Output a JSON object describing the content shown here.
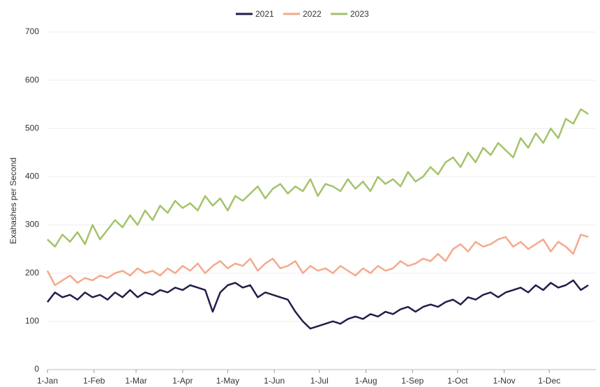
{
  "chart_data": {
    "type": "line",
    "y_label": "Exahashes per Second",
    "x": [
      0,
      5,
      10,
      15,
      20,
      25,
      30,
      35,
      40,
      45,
      50,
      55,
      60,
      65,
      70,
      75,
      80,
      85,
      90,
      95,
      100,
      105,
      110,
      115,
      120,
      125,
      130,
      135,
      140,
      145,
      150,
      155,
      160,
      165,
      170,
      175,
      180,
      185,
      190,
      195,
      200,
      205,
      210,
      215,
      220,
      225,
      230,
      235,
      240,
      245,
      250,
      255,
      260,
      265,
      270,
      275,
      280,
      285,
      290,
      295,
      300,
      305,
      310,
      315,
      320,
      325,
      330,
      335,
      340,
      345,
      350,
      355,
      360
    ],
    "series": [
      {
        "name": "2021",
        "color": "#231d4a",
        "values": [
          140,
          160,
          150,
          155,
          145,
          160,
          150,
          155,
          145,
          160,
          150,
          165,
          150,
          160,
          155,
          165,
          160,
          170,
          165,
          175,
          170,
          165,
          120,
          160,
          175,
          180,
          170,
          175,
          150,
          160,
          155,
          150,
          145,
          120,
          100,
          85,
          90,
          95,
          100,
          95,
          105,
          110,
          105,
          115,
          110,
          120,
          115,
          125,
          130,
          120,
          130,
          135,
          130,
          140,
          145,
          135,
          150,
          145,
          155,
          160,
          150,
          160,
          165,
          170,
          160,
          175,
          165,
          180,
          170,
          175,
          185,
          165,
          175
        ]
      },
      {
        "name": "2022",
        "color": "#f5a98c",
        "values": [
          205,
          175,
          185,
          195,
          180,
          190,
          185,
          195,
          190,
          200,
          205,
          195,
          210,
          200,
          205,
          195,
          210,
          200,
          215,
          205,
          220,
          200,
          215,
          225,
          210,
          220,
          215,
          230,
          205,
          220,
          230,
          210,
          215,
          225,
          200,
          215,
          205,
          210,
          200,
          215,
          205,
          195,
          210,
          200,
          215,
          205,
          210,
          225,
          215,
          220,
          230,
          225,
          240,
          225,
          250,
          260,
          245,
          265,
          255,
          260,
          270,
          275,
          255,
          265,
          250,
          260,
          270,
          245,
          265,
          255,
          240,
          280,
          275
        ]
      },
      {
        "name": "2023",
        "color": "#a3c36b",
        "values": [
          270,
          255,
          280,
          265,
          285,
          260,
          300,
          270,
          290,
          310,
          295,
          320,
          300,
          330,
          310,
          340,
          325,
          350,
          335,
          345,
          330,
          360,
          340,
          355,
          330,
          360,
          350,
          365,
          380,
          355,
          375,
          385,
          365,
          380,
          370,
          395,
          360,
          385,
          380,
          370,
          395,
          375,
          390,
          370,
          400,
          385,
          395,
          380,
          410,
          390,
          400,
          420,
          405,
          430,
          440,
          420,
          450,
          430,
          460,
          445,
          470,
          455,
          440,
          480,
          460,
          490,
          470,
          500,
          480,
          520,
          510,
          540,
          530
        ]
      }
    ],
    "xlim": [
      0,
      365
    ],
    "xticks": [
      {
        "value": 0,
        "label": "1-Jan"
      },
      {
        "value": 31,
        "label": "1-Feb"
      },
      {
        "value": 59,
        "label": "1-Mar"
      },
      {
        "value": 90,
        "label": "1-Apr"
      },
      {
        "value": 120,
        "label": "1-May"
      },
      {
        "value": 151,
        "label": "1-Jun"
      },
      {
        "value": 181,
        "label": "1-Jul"
      },
      {
        "value": 212,
        "label": "1-Aug"
      },
      {
        "value": 243,
        "label": "1-Sep"
      },
      {
        "value": 273,
        "label": "1-Oct"
      },
      {
        "value": 304,
        "label": "1-Nov"
      },
      {
        "value": 334,
        "label": "1-Dec"
      }
    ],
    "ylim": [
      0,
      700
    ],
    "yticks": [
      0,
      100,
      200,
      300,
      400,
      500,
      600,
      700
    ],
    "grid": true
  }
}
